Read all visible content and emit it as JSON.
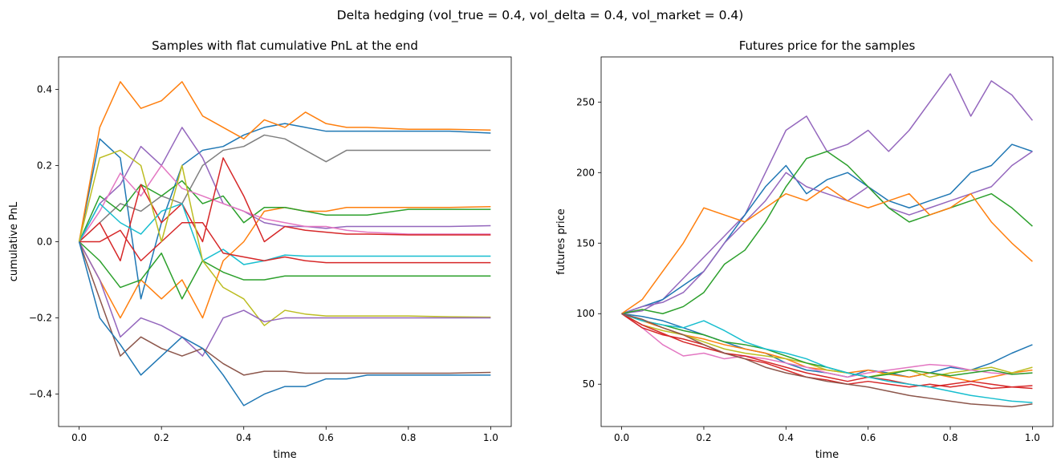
{
  "suptitle": "Delta hedging (vol_true = 0.4, vol_delta = 0.4, vol_market = 0.4)",
  "palette": [
    "#1f77b4",
    "#ff7f0e",
    "#2ca02c",
    "#d62728",
    "#9467bd",
    "#8c564b",
    "#e377c2",
    "#7f7f7f",
    "#bcbd22",
    "#17becf"
  ],
  "chart_data": [
    {
      "type": "line",
      "title": "Samples with flat cumulative PnL at the end",
      "xlabel": "time",
      "ylabel": "cumulative PnL",
      "xlim": [
        -0.05,
        1.05
      ],
      "ylim": [
        -0.485,
        0.485
      ],
      "xticks": [
        0.0,
        0.2,
        0.4,
        0.6,
        0.8,
        1.0
      ],
      "xtick_labels": [
        "0.0",
        "0.2",
        "0.4",
        "0.6",
        "0.8",
        "1.0"
      ],
      "yticks": [
        -0.4,
        -0.2,
        0.0,
        0.2,
        0.4
      ],
      "ytick_labels": [
        "−0.4",
        "−0.2",
        "0.0",
        "0.2",
        "0.4"
      ],
      "x": [
        0.0,
        0.05,
        0.1,
        0.15,
        0.2,
        0.25,
        0.3,
        0.35,
        0.4,
        0.45,
        0.5,
        0.55,
        0.6,
        0.65,
        0.7,
        0.8,
        0.9,
        1.0
      ],
      "series": [
        {
          "color_index": 0,
          "values": [
            0.0,
            0.27,
            0.22,
            -0.15,
            0.05,
            0.2,
            0.24,
            0.25,
            0.28,
            0.3,
            0.31,
            0.3,
            0.29,
            0.29,
            0.29,
            0.29,
            0.29,
            0.285
          ]
        },
        {
          "color_index": 1,
          "values": [
            0.0,
            0.3,
            0.42,
            0.35,
            0.37,
            0.42,
            0.33,
            0.3,
            0.27,
            0.32,
            0.3,
            0.34,
            0.31,
            0.3,
            0.3,
            0.295,
            0.295,
            0.293
          ]
        },
        {
          "color_index": 7,
          "values": [
            0.0,
            0.05,
            0.1,
            0.08,
            0.12,
            0.1,
            0.2,
            0.24,
            0.25,
            0.28,
            0.27,
            0.24,
            0.21,
            0.24,
            0.24,
            0.24,
            0.24,
            0.24
          ]
        },
        {
          "color_index": 1,
          "values": [
            0.0,
            -0.1,
            -0.2,
            -0.1,
            -0.15,
            -0.1,
            -0.2,
            -0.05,
            0.0,
            0.08,
            0.09,
            0.08,
            0.08,
            0.09,
            0.09,
            0.09,
            0.09,
            0.092
          ]
        },
        {
          "color_index": 2,
          "values": [
            0.0,
            0.12,
            0.08,
            0.15,
            0.12,
            0.16,
            0.1,
            0.12,
            0.05,
            0.09,
            0.09,
            0.08,
            0.07,
            0.07,
            0.07,
            0.085,
            0.085,
            0.085
          ]
        },
        {
          "color_index": 4,
          "values": [
            0.0,
            0.1,
            0.15,
            0.25,
            0.2,
            0.3,
            0.22,
            0.1,
            0.08,
            0.05,
            0.04,
            0.04,
            0.035,
            0.04,
            0.04,
            0.04,
            0.04,
            0.042
          ]
        },
        {
          "color_index": 6,
          "values": [
            0.0,
            0.08,
            0.18,
            0.12,
            0.2,
            0.14,
            0.12,
            0.1,
            0.08,
            0.06,
            0.05,
            0.04,
            0.04,
            0.03,
            0.025,
            0.02,
            0.02,
            0.02
          ]
        },
        {
          "color_index": 3,
          "values": [
            0.0,
            0.05,
            -0.05,
            0.15,
            0.05,
            0.1,
            0.0,
            0.22,
            0.12,
            0.0,
            0.04,
            0.03,
            0.025,
            0.02,
            0.02,
            0.018,
            0.018,
            0.018
          ]
        },
        {
          "color_index": 9,
          "values": [
            0.0,
            0.1,
            0.05,
            0.02,
            0.08,
            0.1,
            -0.05,
            -0.02,
            -0.06,
            -0.05,
            -0.035,
            -0.038,
            -0.038,
            -0.038,
            -0.038,
            -0.038,
            -0.038,
            -0.038
          ]
        },
        {
          "color_index": 3,
          "values": [
            0.0,
            0.0,
            0.03,
            -0.05,
            0.0,
            0.05,
            0.05,
            -0.03,
            -0.04,
            -0.05,
            -0.04,
            -0.05,
            -0.055,
            -0.055,
            -0.055,
            -0.055,
            -0.055,
            -0.055
          ]
        },
        {
          "color_index": 2,
          "values": [
            0.0,
            -0.05,
            -0.12,
            -0.1,
            -0.03,
            -0.15,
            -0.05,
            -0.08,
            -0.1,
            -0.1,
            -0.09,
            -0.09,
            -0.09,
            -0.09,
            -0.09,
            -0.09,
            -0.09,
            -0.09
          ]
        },
        {
          "color_index": 8,
          "values": [
            0.0,
            0.22,
            0.24,
            0.2,
            0.0,
            0.2,
            -0.05,
            -0.12,
            -0.15,
            -0.22,
            -0.18,
            -0.19,
            -0.195,
            -0.195,
            -0.195,
            -0.195,
            -0.197,
            -0.198
          ]
        },
        {
          "color_index": 4,
          "values": [
            0.0,
            -0.1,
            -0.25,
            -0.2,
            -0.22,
            -0.25,
            -0.3,
            -0.2,
            -0.18,
            -0.21,
            -0.2,
            -0.2,
            -0.2,
            -0.2,
            -0.2,
            -0.2,
            -0.2,
            -0.2
          ]
        },
        {
          "color_index": 5,
          "values": [
            0.0,
            -0.15,
            -0.3,
            -0.25,
            -0.28,
            -0.3,
            -0.28,
            -0.32,
            -0.35,
            -0.34,
            -0.34,
            -0.345,
            -0.345,
            -0.345,
            -0.345,
            -0.345,
            -0.345,
            -0.343
          ]
        },
        {
          "color_index": 0,
          "values": [
            0.0,
            -0.2,
            -0.27,
            -0.35,
            -0.3,
            -0.25,
            -0.28,
            -0.35,
            -0.43,
            -0.4,
            -0.38,
            -0.38,
            -0.36,
            -0.36,
            -0.35,
            -0.35,
            -0.35,
            -0.35
          ]
        }
      ]
    },
    {
      "type": "line",
      "title": "Futures price for the samples",
      "xlabel": "time",
      "ylabel": "futures price",
      "xlim": [
        -0.05,
        1.05
      ],
      "ylim": [
        20,
        282
      ],
      "xticks": [
        0.0,
        0.2,
        0.4,
        0.6,
        0.8,
        1.0
      ],
      "xtick_labels": [
        "0.0",
        "0.2",
        "0.4",
        "0.6",
        "0.8",
        "1.0"
      ],
      "yticks": [
        50,
        100,
        150,
        200,
        250
      ],
      "ytick_labels": [
        "50",
        "100",
        "150",
        "200",
        "250"
      ],
      "x": [
        0.0,
        0.05,
        0.1,
        0.15,
        0.2,
        0.25,
        0.3,
        0.35,
        0.4,
        0.45,
        0.5,
        0.55,
        0.6,
        0.65,
        0.7,
        0.75,
        0.8,
        0.85,
        0.9,
        0.95,
        1.0
      ],
      "series": [
        {
          "color_index": 4,
          "values": [
            100,
            102,
            110,
            125,
            140,
            155,
            170,
            200,
            230,
            240,
            215,
            220,
            230,
            215,
            230,
            250,
            270,
            240,
            265,
            255,
            237
          ]
        },
        {
          "color_index": 0,
          "values": [
            100,
            105,
            110,
            120,
            130,
            150,
            170,
            190,
            205,
            185,
            195,
            200,
            190,
            180,
            175,
            180,
            185,
            200,
            205,
            220,
            215
          ]
        },
        {
          "color_index": 4,
          "values": [
            100,
            105,
            108,
            115,
            130,
            150,
            165,
            180,
            200,
            190,
            185,
            180,
            190,
            175,
            170,
            175,
            180,
            185,
            190,
            205,
            215
          ]
        },
        {
          "color_index": 2,
          "values": [
            100,
            103,
            100,
            105,
            115,
            135,
            145,
            165,
            190,
            210,
            215,
            205,
            190,
            175,
            165,
            170,
            175,
            180,
            185,
            175,
            162
          ]
        },
        {
          "color_index": 1,
          "values": [
            100,
            110,
            130,
            150,
            175,
            170,
            165,
            175,
            185,
            180,
            190,
            180,
            175,
            180,
            185,
            170,
            175,
            185,
            165,
            150,
            137
          ]
        },
        {
          "color_index": 0,
          "values": [
            100,
            98,
            95,
            90,
            85,
            80,
            75,
            72,
            65,
            60,
            58,
            55,
            60,
            58,
            55,
            58,
            62,
            60,
            65,
            72,
            78
          ]
        },
        {
          "color_index": 1,
          "values": [
            100,
            95,
            90,
            85,
            82,
            78,
            75,
            72,
            68,
            62,
            60,
            58,
            60,
            57,
            55,
            58,
            55,
            52,
            55,
            58,
            60
          ]
        },
        {
          "color_index": 8,
          "values": [
            100,
            92,
            88,
            85,
            80,
            75,
            72,
            70,
            68,
            65,
            60,
            58,
            55,
            58,
            60,
            55,
            58,
            60,
            62,
            58,
            62
          ]
        },
        {
          "color_index": 6,
          "values": [
            100,
            90,
            78,
            70,
            72,
            68,
            70,
            68,
            65,
            62,
            58,
            55,
            58,
            60,
            62,
            64,
            63,
            60,
            58,
            57,
            58
          ]
        },
        {
          "color_index": 2,
          "values": [
            100,
            95,
            92,
            88,
            85,
            80,
            78,
            75,
            70,
            65,
            62,
            58,
            55,
            57,
            60,
            58,
            56,
            58,
            60,
            57,
            58
          ]
        },
        {
          "color_index": 3,
          "values": [
            100,
            90,
            85,
            82,
            78,
            72,
            68,
            65,
            60,
            55,
            53,
            50,
            52,
            50,
            48,
            50,
            48,
            50,
            47,
            48,
            49
          ]
        },
        {
          "color_index": 3,
          "values": [
            100,
            92,
            86,
            80,
            76,
            72,
            70,
            66,
            62,
            58,
            55,
            52,
            55,
            53,
            50,
            48,
            50,
            52,
            50,
            48,
            47
          ]
        },
        {
          "color_index": 9,
          "values": [
            100,
            95,
            92,
            90,
            95,
            88,
            80,
            75,
            72,
            68,
            62,
            58,
            55,
            52,
            50,
            48,
            45,
            42,
            40,
            38,
            37
          ]
        },
        {
          "color_index": 5,
          "values": [
            100,
            96,
            90,
            85,
            78,
            72,
            68,
            62,
            58,
            55,
            52,
            50,
            48,
            45,
            42,
            40,
            38,
            36,
            35,
            34,
            36
          ]
        }
      ]
    }
  ]
}
